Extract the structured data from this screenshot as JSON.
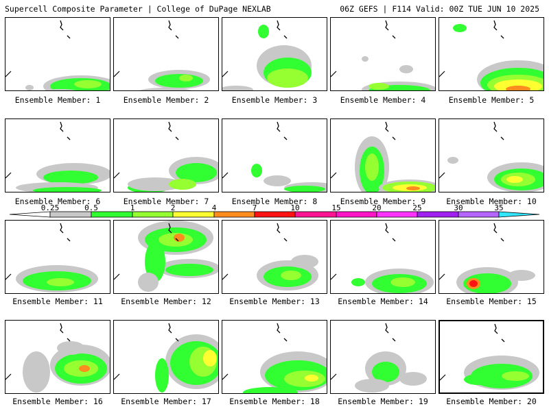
{
  "header": {
    "left_title": "Supercell Composite Parameter | College of DuPage NEXLAB",
    "right_title": "06Z GEFS | F114 Valid: 00Z TUE JUN 10 2025"
  },
  "panel_label_prefix": "Ensemble Member:",
  "members": [
    {
      "number": 1,
      "label": "Ensemble Member: 1"
    },
    {
      "number": 2,
      "label": "Ensemble Member: 2"
    },
    {
      "number": 3,
      "label": "Ensemble Member: 3"
    },
    {
      "number": 4,
      "label": "Ensemble Member: 4"
    },
    {
      "number": 5,
      "label": "Ensemble Member: 5"
    },
    {
      "number": 6,
      "label": "Ensemble Member: 6"
    },
    {
      "number": 7,
      "label": "Ensemble Member: 7"
    },
    {
      "number": 8,
      "label": "Ensemble Member: 8"
    },
    {
      "number": 9,
      "label": "Ensemble Member: 9"
    },
    {
      "number": 10,
      "label": "Ensemble Member: 10"
    },
    {
      "number": 11,
      "label": "Ensemble Member: 11"
    },
    {
      "number": 12,
      "label": "Ensemble Member: 12"
    },
    {
      "number": 13,
      "label": "Ensemble Member: 13"
    },
    {
      "number": 14,
      "label": "Ensemble Member: 14"
    },
    {
      "number": 15,
      "label": "Ensemble Member: 15"
    },
    {
      "number": 16,
      "label": "Ensemble Member: 16"
    },
    {
      "number": 17,
      "label": "Ensemble Member: 17"
    },
    {
      "number": 18,
      "label": "Ensemble Member: 18"
    },
    {
      "number": 19,
      "label": "Ensemble Member: 19"
    },
    {
      "number": 20,
      "label": "Ensemble Member: 20"
    }
  ],
  "colorbar": {
    "labels": [
      "0.25",
      "0.5",
      "1",
      "2",
      "4",
      "7",
      "10",
      "15",
      "20",
      "25",
      "30",
      "35"
    ],
    "colors": [
      "#c8c8c8",
      "#32ff32",
      "#96ff32",
      "#ffff32",
      "#ff8c1e",
      "#ff1414",
      "#ff1493",
      "#ff14c8",
      "#ff32ff",
      "#a020f0",
      "#b464ff",
      "#32e6ff"
    ]
  },
  "map_colors": {
    "gray": "#c8c8c8",
    "green": "#32ff32",
    "lightgreen": "#96ff32",
    "yellow": "#ffff32",
    "orange": "#ff8c1e",
    "red": "#ff1414"
  }
}
